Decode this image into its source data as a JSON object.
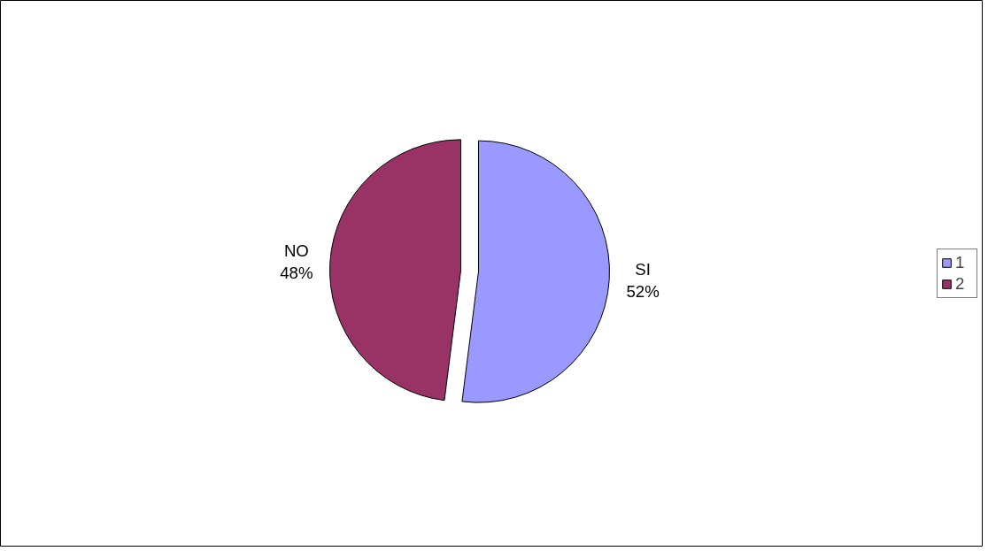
{
  "chart_data": {
    "type": "pie",
    "categories": [
      "1",
      "2"
    ],
    "values": [
      52,
      48
    ],
    "value_labels": [
      "SI\n52%",
      "NO\n48%"
    ],
    "colors": [
      "#9999ff",
      "#993366"
    ],
    "legend": "right"
  }
}
